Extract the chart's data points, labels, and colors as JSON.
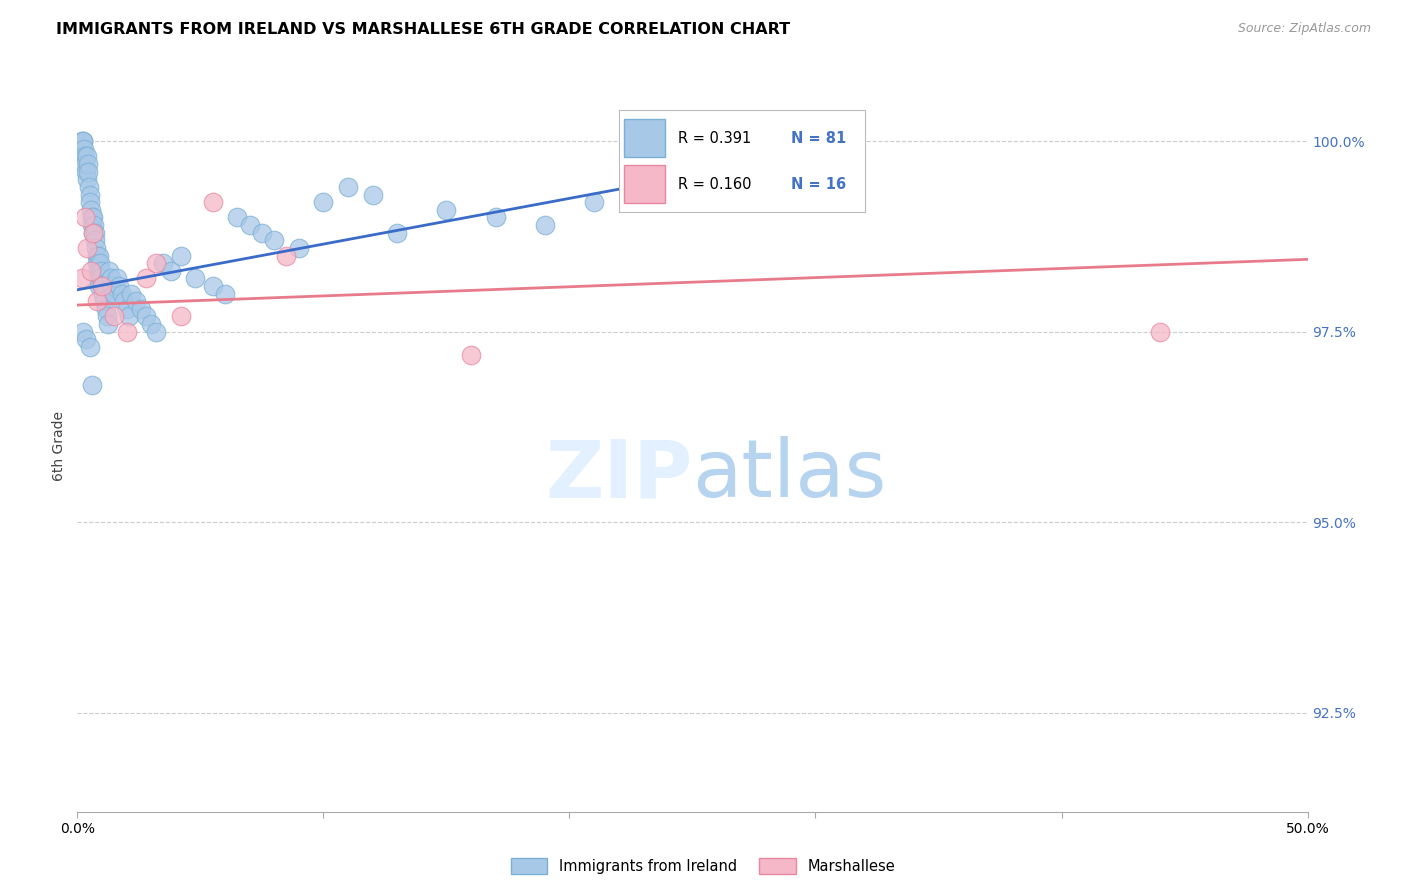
{
  "title": "IMMIGRANTS FROM IRELAND VS MARSHALLESE 6TH GRADE CORRELATION CHART",
  "source": "Source: ZipAtlas.com",
  "ylabel": "6th Grade",
  "ylabel_values": [
    92.5,
    95.0,
    97.5,
    100.0
  ],
  "xmin": 0.0,
  "xmax": 50.0,
  "ymin": 91.2,
  "ymax": 100.8,
  "ireland_line_x0": 0.0,
  "ireland_line_y0": 98.05,
  "ireland_line_x1": 25.0,
  "ireland_line_y1": 99.55,
  "marsh_line_x0": 0.0,
  "marsh_line_y0": 97.85,
  "marsh_line_x1": 50.0,
  "marsh_line_y1": 98.45,
  "ireland_line_color": "#3a6bc9",
  "marshallese_line_color": "#e87b8b",
  "ireland_scatter_color": "#a8c8e8",
  "ireland_scatter_edge": "#7ab0d4",
  "marshallese_scatter_color": "#f5b8c8",
  "marshallese_scatter_edge": "#e888a0",
  "grid_color": "#cccccc",
  "right_axis_color": "#4472c4",
  "legend_r1": "R = 0.391",
  "legend_n1": "N = 81",
  "legend_r2": "R = 0.160",
  "legend_n2": "N = 16",
  "legend_color1": "#a8c8e8",
  "legend_color1_edge": "#7ab0d4",
  "legend_color2": "#f5b8c8",
  "legend_color2_edge": "#e888a0",
  "bottom_label1": "Immigrants from Ireland",
  "bottom_label2": "Marshallese",
  "ireland_x": [
    0.15,
    0.18,
    0.2,
    0.22,
    0.25,
    0.28,
    0.3,
    0.32,
    0.35,
    0.38,
    0.4,
    0.42,
    0.45,
    0.48,
    0.5,
    0.52,
    0.55,
    0.58,
    0.6,
    0.62,
    0.65,
    0.68,
    0.7,
    0.72,
    0.75,
    0.78,
    0.8,
    0.82,
    0.85,
    0.88,
    0.9,
    0.92,
    0.95,
    0.98,
    1.0,
    1.05,
    1.1,
    1.15,
    1.2,
    1.25,
    1.3,
    1.35,
    1.4,
    1.5,
    1.6,
    1.7,
    1.8,
    1.9,
    2.0,
    2.1,
    2.2,
    2.4,
    2.6,
    2.8,
    3.0,
    3.2,
    3.5,
    3.8,
    4.2,
    4.8,
    5.5,
    6.0,
    6.5,
    7.0,
    7.5,
    8.0,
    9.0,
    10.0,
    11.0,
    12.0,
    13.0,
    15.0,
    17.0,
    19.0,
    21.0,
    23.0,
    25.0,
    0.25,
    0.35,
    0.5,
    0.6
  ],
  "ireland_y": [
    99.8,
    99.9,
    100.0,
    100.0,
    100.0,
    99.9,
    99.8,
    99.7,
    99.6,
    99.5,
    99.8,
    99.7,
    99.6,
    99.4,
    99.3,
    99.2,
    99.1,
    99.0,
    98.9,
    98.8,
    99.0,
    98.9,
    98.8,
    98.7,
    98.6,
    98.5,
    98.4,
    98.3,
    98.2,
    98.1,
    98.5,
    98.4,
    98.3,
    98.2,
    98.1,
    98.0,
    97.9,
    97.8,
    97.7,
    97.6,
    98.3,
    98.2,
    98.1,
    98.0,
    98.2,
    98.1,
    98.0,
    97.9,
    97.8,
    97.7,
    98.0,
    97.9,
    97.8,
    97.7,
    97.6,
    97.5,
    98.4,
    98.3,
    98.5,
    98.2,
    98.1,
    98.0,
    99.0,
    98.9,
    98.8,
    98.7,
    98.6,
    99.2,
    99.4,
    99.3,
    98.8,
    99.1,
    99.0,
    98.9,
    99.2,
    99.4,
    99.5,
    97.5,
    97.4,
    97.3,
    96.8
  ],
  "marsh_x": [
    0.2,
    0.3,
    0.4,
    0.55,
    0.65,
    0.8,
    1.0,
    1.5,
    2.0,
    2.8,
    3.2,
    4.2,
    5.5,
    8.5,
    16.0,
    44.0
  ],
  "marsh_y": [
    98.2,
    99.0,
    98.6,
    98.3,
    98.8,
    97.9,
    98.1,
    97.7,
    97.5,
    98.2,
    98.4,
    97.7,
    99.2,
    98.5,
    97.2,
    97.5
  ]
}
